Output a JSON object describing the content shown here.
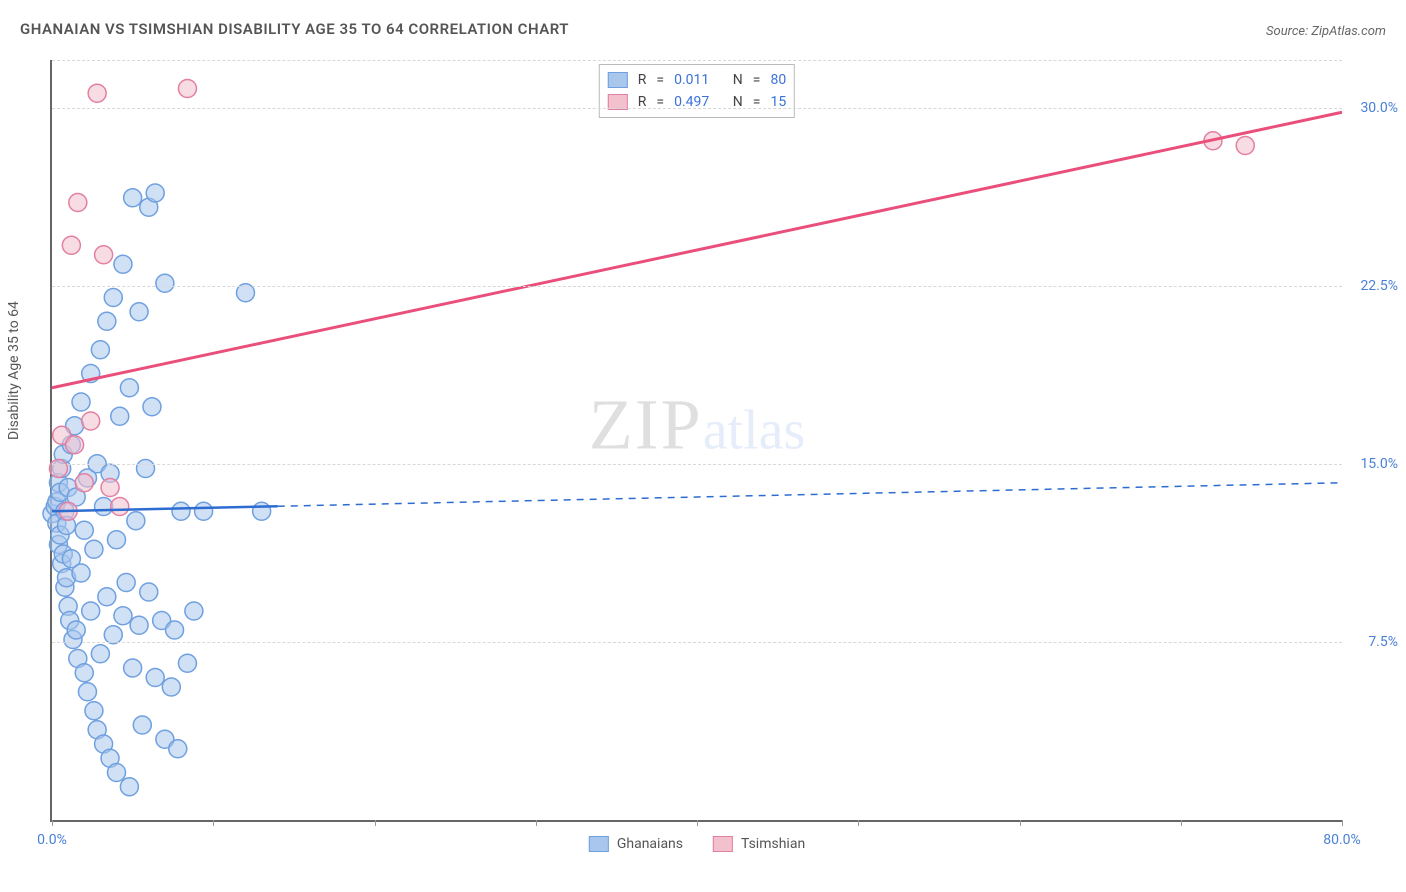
{
  "title": "GHANAIAN VS TSIMSHIAN DISABILITY AGE 35 TO 64 CORRELATION CHART",
  "source": "Source: ZipAtlas.com",
  "ylabel": "Disability Age 35 to 64",
  "watermark": {
    "part1": "ZIP",
    "part2": "atlas"
  },
  "chart": {
    "type": "scatter",
    "background_color": "#ffffff",
    "grid_color": "#d8d8d8",
    "axis_color": "#666666",
    "value_color": "#3a72d8",
    "xlim": [
      0,
      80
    ],
    "ylim": [
      0,
      32
    ],
    "xticks": [
      0,
      10,
      20,
      30,
      40,
      50,
      60,
      70,
      80
    ],
    "xtick_labels": {
      "0": "0.0%",
      "80": "80.0%"
    },
    "yticks": [
      7.5,
      15.0,
      22.5,
      30.0
    ],
    "ytick_labels": [
      "7.5%",
      "15.0%",
      "22.5%",
      "30.0%"
    ],
    "marker_radius": 9,
    "marker_opacity": 0.55,
    "series": [
      {
        "name": "Ghanaians",
        "color_fill": "#a9c6ed",
        "color_stroke": "#6fa0e0",
        "R": "0.011",
        "N": "80",
        "trend": {
          "x1": 0,
          "y1": 13.0,
          "x2": 80,
          "y2": 14.2,
          "solid_until_x": 14,
          "color": "#2d6cd0",
          "width": 2.5
        },
        "points": [
          [
            0.0,
            12.9
          ],
          [
            0.2,
            13.2
          ],
          [
            0.3,
            12.5
          ],
          [
            0.3,
            13.4
          ],
          [
            0.4,
            11.6
          ],
          [
            0.4,
            14.2
          ],
          [
            0.5,
            12.0
          ],
          [
            0.5,
            13.8
          ],
          [
            0.6,
            10.8
          ],
          [
            0.6,
            14.8
          ],
          [
            0.7,
            11.2
          ],
          [
            0.7,
            15.4
          ],
          [
            0.8,
            9.8
          ],
          [
            0.8,
            13.0
          ],
          [
            0.9,
            10.2
          ],
          [
            0.9,
            12.4
          ],
          [
            1.0,
            9.0
          ],
          [
            1.0,
            14.0
          ],
          [
            1.1,
            8.4
          ],
          [
            1.2,
            11.0
          ],
          [
            1.2,
            15.8
          ],
          [
            1.3,
            7.6
          ],
          [
            1.4,
            16.6
          ],
          [
            1.5,
            8.0
          ],
          [
            1.5,
            13.6
          ],
          [
            1.6,
            6.8
          ],
          [
            1.8,
            10.4
          ],
          [
            1.8,
            17.6
          ],
          [
            2.0,
            6.2
          ],
          [
            2.0,
            12.2
          ],
          [
            2.2,
            5.4
          ],
          [
            2.2,
            14.4
          ],
          [
            2.4,
            8.8
          ],
          [
            2.4,
            18.8
          ],
          [
            2.6,
            4.6
          ],
          [
            2.6,
            11.4
          ],
          [
            2.8,
            3.8
          ],
          [
            2.8,
            15.0
          ],
          [
            3.0,
            7.0
          ],
          [
            3.0,
            19.8
          ],
          [
            3.2,
            3.2
          ],
          [
            3.2,
            13.2
          ],
          [
            3.4,
            9.4
          ],
          [
            3.4,
            21.0
          ],
          [
            3.6,
            2.6
          ],
          [
            3.6,
            14.6
          ],
          [
            3.8,
            7.8
          ],
          [
            3.8,
            22.0
          ],
          [
            4.0,
            11.8
          ],
          [
            4.0,
            2.0
          ],
          [
            4.2,
            17.0
          ],
          [
            4.4,
            8.6
          ],
          [
            4.4,
            23.4
          ],
          [
            4.6,
            10.0
          ],
          [
            4.8,
            1.4
          ],
          [
            4.8,
            18.2
          ],
          [
            5.0,
            6.4
          ],
          [
            5.0,
            26.2
          ],
          [
            5.2,
            12.6
          ],
          [
            5.4,
            8.2
          ],
          [
            5.4,
            21.4
          ],
          [
            5.6,
            4.0
          ],
          [
            5.8,
            14.8
          ],
          [
            6.0,
            25.8
          ],
          [
            6.0,
            9.6
          ],
          [
            6.2,
            17.4
          ],
          [
            6.4,
            6.0
          ],
          [
            6.4,
            26.4
          ],
          [
            6.8,
            8.4
          ],
          [
            7.0,
            3.4
          ],
          [
            7.0,
            22.6
          ],
          [
            7.4,
            5.6
          ],
          [
            7.6,
            8.0
          ],
          [
            7.8,
            3.0
          ],
          [
            8.0,
            13.0
          ],
          [
            8.4,
            6.6
          ],
          [
            8.8,
            8.8
          ],
          [
            9.4,
            13.0
          ],
          [
            12.0,
            22.2
          ],
          [
            13.0,
            13.0
          ]
        ]
      },
      {
        "name": "Tsimshian",
        "color_fill": "#f3c0cd",
        "color_stroke": "#e37fa0",
        "R": "0.497",
        "N": "15",
        "trend": {
          "x1": 0,
          "y1": 18.2,
          "x2": 80,
          "y2": 29.8,
          "solid_until_x": 80,
          "color": "#e94f7a",
          "width": 3
        },
        "points": [
          [
            0.4,
            14.8
          ],
          [
            0.6,
            16.2
          ],
          [
            1.0,
            13.0
          ],
          [
            1.2,
            24.2
          ],
          [
            1.4,
            15.8
          ],
          [
            1.6,
            26.0
          ],
          [
            2.0,
            14.2
          ],
          [
            2.4,
            16.8
          ],
          [
            2.8,
            30.6
          ],
          [
            3.2,
            23.8
          ],
          [
            3.6,
            14.0
          ],
          [
            4.2,
            13.2
          ],
          [
            8.4,
            30.8
          ],
          [
            72.0,
            28.6
          ],
          [
            74.0,
            28.4
          ]
        ]
      }
    ],
    "stat_legend_labels": {
      "R": "R",
      "eq": "=",
      "N": "N"
    },
    "series_legend": [
      "Ghanaians",
      "Tsimshian"
    ]
  }
}
